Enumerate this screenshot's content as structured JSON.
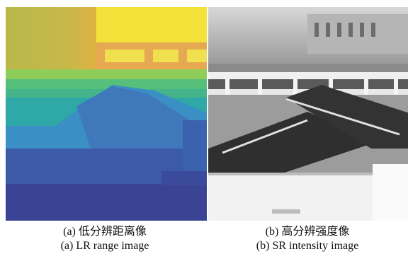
{
  "figure": {
    "panels": [
      {
        "caption_zh": "(a) 低分辨距离像",
        "caption_en": "(a) LR range image",
        "colors": {
          "far": "#f2e23a",
          "upper": "#c9c24a",
          "middle": "#56bf7a",
          "band": "#2fa9a8",
          "roof": "#3a8fc4",
          "near": "#3c5aa8",
          "ground": "#3b4394"
        }
      },
      {
        "caption_zh": "(b) 高分辨强度像",
        "caption_en": "(b) SR intensity image",
        "colors": {
          "sky": "#cfcfcf",
          "facade": "#8a8a8a",
          "roof": "#2f2f2f",
          "ground": "#f2f2f2"
        }
      }
    ]
  }
}
